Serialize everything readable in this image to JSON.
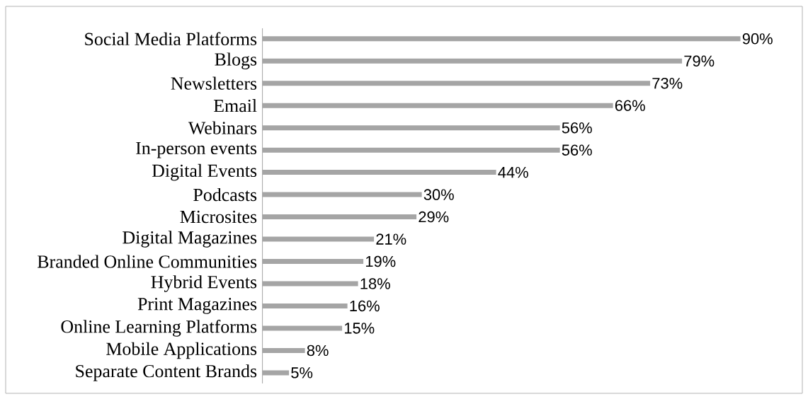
{
  "chart_data": {
    "type": "bar",
    "orientation": "horizontal",
    "color": "#a5a5a5",
    "categories": [
      "Social Media Platforms",
      "Blogs",
      "Newsletters",
      "Email",
      "Webinars",
      "In-person events",
      "Digital Events",
      "Podcasts",
      "Microsites",
      "Digital Magazines",
      "Branded Online Communities",
      "Hybrid Events",
      "Print Magazines",
      "Online Learning Platforms",
      "Mobile Applications",
      "Separate Content Brands"
    ],
    "values": [
      90,
      79,
      73,
      66,
      56,
      56,
      44,
      30,
      29,
      21,
      19,
      18,
      16,
      15,
      8,
      5
    ],
    "value_labels": [
      "90%",
      "79%",
      "73%",
      "66%",
      "56%",
      "56%",
      "44%",
      "30%",
      "29%",
      "21%",
      "19%",
      "18%",
      "16%",
      "15%",
      "8%",
      "5%"
    ]
  }
}
